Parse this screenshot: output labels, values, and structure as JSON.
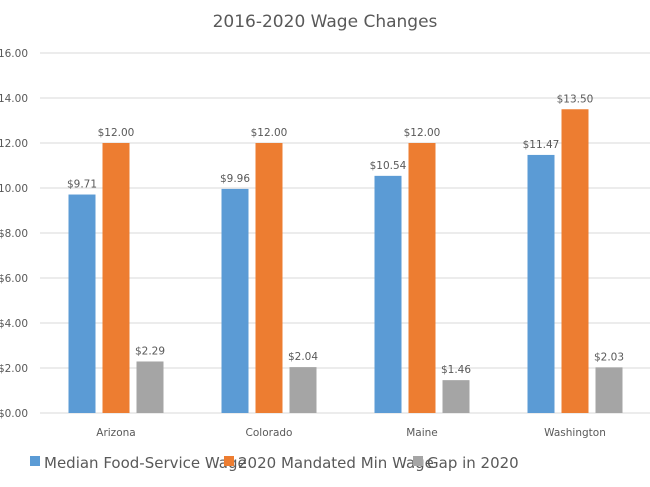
{
  "chart_data": {
    "type": "bar",
    "title": "2016-2020 Wage Changes",
    "xlabel": "",
    "ylabel": "",
    "ylim": [
      0,
      16
    ],
    "ytick_step": 2,
    "grid": true,
    "legend_position": "bottom",
    "y_tick_labels": [
      "$0.00",
      "$2.00",
      "$4.00",
      "$6.00",
      "$8.00",
      "10.00",
      "12.00",
      "14.00",
      "16.00"
    ],
    "categories": [
      "Arizona",
      "Colorado",
      "Maine",
      "Washington"
    ],
    "series": [
      {
        "name": "Median Food-Service Wage",
        "color": "#5b9bd5",
        "values": [
          9.71,
          9.96,
          10.54,
          11.47
        ],
        "labels": [
          "$9.71",
          "$9.96",
          "$10.54",
          "$11.47"
        ]
      },
      {
        "name": "2020 Mandated Min Wage",
        "color": "#ed7d31",
        "values": [
          12.0,
          12.0,
          12.0,
          13.5
        ],
        "labels": [
          "$12.00",
          "$12.00",
          "$12.00",
          "$13.50"
        ]
      },
      {
        "name": "Gap in 2020",
        "color": "#a5a5a5",
        "values": [
          2.29,
          2.04,
          1.46,
          2.03
        ],
        "labels": [
          "$2.29",
          "$2.04",
          "$1.46",
          "$2.03"
        ]
      }
    ]
  }
}
